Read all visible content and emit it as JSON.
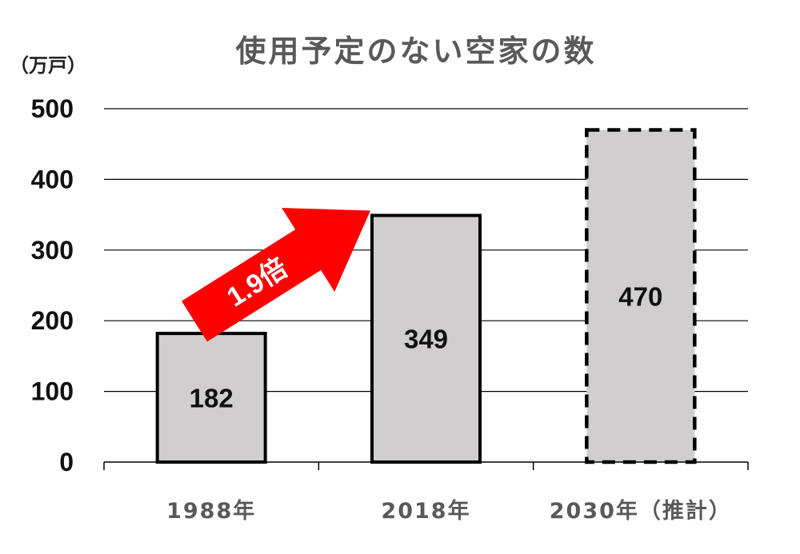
{
  "chart_data": {
    "type": "bar",
    "title": "使用予定のない空家の数",
    "unit_label": "（万戸）",
    "categories": [
      "1988年",
      "2018年",
      "2030年（推計）"
    ],
    "values": [
      182,
      349,
      470
    ],
    "data_labels": [
      "182",
      "349",
      "470"
    ],
    "estimated": [
      false,
      false,
      true
    ],
    "ylim": [
      0,
      500
    ],
    "yticks": [
      0,
      100,
      200,
      300,
      400,
      500
    ],
    "grid": true,
    "legend": "none",
    "annotation": {
      "text": "1.9倍",
      "from_category": "1988年",
      "to_category": "2018年",
      "color": "#ff0000"
    },
    "colors": {
      "bar_fill": "#d0cece",
      "bar_stroke": "#000000",
      "grid": "#000000",
      "arrow": "#ff0000"
    }
  }
}
